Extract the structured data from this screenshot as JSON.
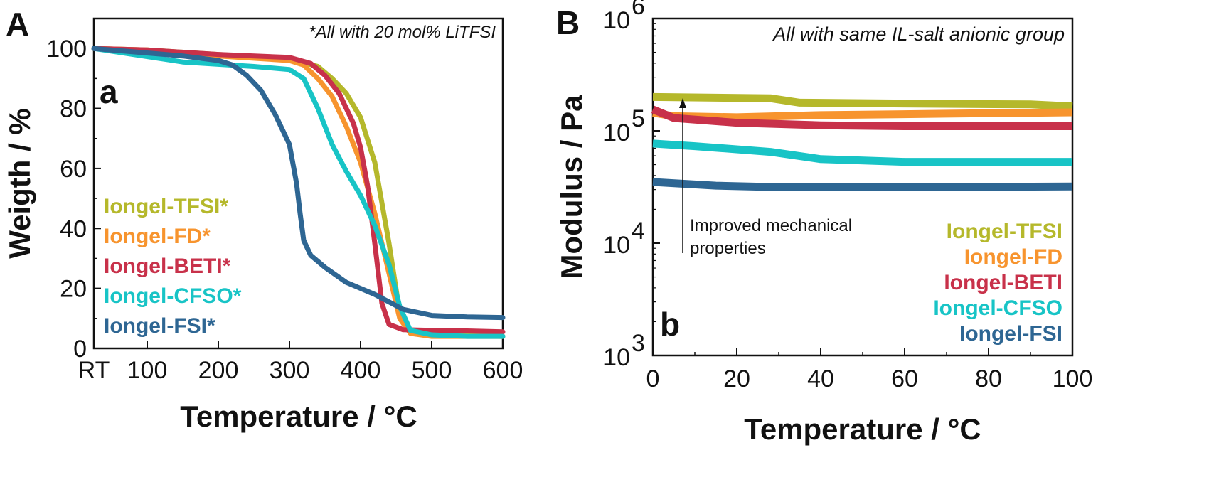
{
  "figure": {
    "panel_left_label": "A",
    "panel_right_label": "B"
  },
  "chart_data": [
    {
      "type": "line",
      "panel_letter": "a",
      "xlabel": "Temperature / °C",
      "ylabel": "Weigth / %",
      "annotation": "*All with 20 mol% LiTFSI",
      "xlim": [
        25,
        600
      ],
      "ylim": [
        0,
        110
      ],
      "x_ticks": [
        {
          "value": 25,
          "label": "RT"
        },
        {
          "value": 100,
          "label": "100"
        },
        {
          "value": 200,
          "label": "200"
        },
        {
          "value": 300,
          "label": "300"
        },
        {
          "value": 400,
          "label": "400"
        },
        {
          "value": 500,
          "label": "500"
        },
        {
          "value": 600,
          "label": "600"
        }
      ],
      "y_ticks": [
        0,
        20,
        40,
        60,
        80,
        100
      ],
      "legend_position": "left-middle",
      "series": [
        {
          "name": "Iongel-TFSI*",
          "color": "#b5b82b",
          "points": [
            [
              25,
              100
            ],
            [
              100,
              99.5
            ],
            [
              200,
              98
            ],
            [
              300,
              96.5
            ],
            [
              340,
              94
            ],
            [
              360,
              90
            ],
            [
              380,
              85
            ],
            [
              400,
              77
            ],
            [
              420,
              62
            ],
            [
              440,
              35
            ],
            [
              455,
              12
            ],
            [
              470,
              6
            ],
            [
              500,
              4.5
            ],
            [
              550,
              4.2
            ],
            [
              600,
              4
            ]
          ]
        },
        {
          "name": "Iongel-FD*",
          "color": "#f7942e",
          "points": [
            [
              25,
              100
            ],
            [
              100,
              99.5
            ],
            [
              200,
              97.5
            ],
            [
              300,
              96
            ],
            [
              320,
              94.5
            ],
            [
              340,
              90
            ],
            [
              360,
              84
            ],
            [
              380,
              74
            ],
            [
              400,
              62
            ],
            [
              420,
              45
            ],
            [
              440,
              25
            ],
            [
              455,
              10
            ],
            [
              470,
              5
            ],
            [
              500,
              4
            ],
            [
              550,
              4
            ],
            [
              600,
              4
            ]
          ]
        },
        {
          "name": "Iongel-BETI*",
          "color": "#c8314a",
          "points": [
            [
              25,
              100
            ],
            [
              100,
              99.5
            ],
            [
              200,
              98
            ],
            [
              300,
              97
            ],
            [
              330,
              95
            ],
            [
              350,
              91
            ],
            [
              370,
              85
            ],
            [
              390,
              75
            ],
            [
              400,
              67
            ],
            [
              410,
              54
            ],
            [
              420,
              35
            ],
            [
              430,
              15
            ],
            [
              440,
              8
            ],
            [
              460,
              6.2
            ],
            [
              500,
              6
            ],
            [
              550,
              5.8
            ],
            [
              600,
              5.5
            ]
          ]
        },
        {
          "name": "Iongel-CFSO*",
          "color": "#18c4c6",
          "points": [
            [
              25,
              100
            ],
            [
              80,
              98
            ],
            [
              150,
              95.5
            ],
            [
              250,
              94
            ],
            [
              300,
              93
            ],
            [
              320,
              90
            ],
            [
              340,
              80
            ],
            [
              360,
              68
            ],
            [
              380,
              59
            ],
            [
              400,
              51
            ],
            [
              420,
              41
            ],
            [
              440,
              28
            ],
            [
              455,
              14
            ],
            [
              470,
              6
            ],
            [
              500,
              4.5
            ],
            [
              550,
              4
            ],
            [
              600,
              4
            ]
          ]
        },
        {
          "name": "Iongel-FSI*",
          "color": "#2e6693",
          "points": [
            [
              25,
              100
            ],
            [
              100,
              98.5
            ],
            [
              150,
              97.5
            ],
            [
              200,
              96
            ],
            [
              220,
              94.5
            ],
            [
              240,
              91
            ],
            [
              260,
              86
            ],
            [
              280,
              78
            ],
            [
              300,
              68
            ],
            [
              310,
              55
            ],
            [
              315,
              45
            ],
            [
              320,
              36
            ],
            [
              330,
              31
            ],
            [
              350,
              27
            ],
            [
              380,
              22
            ],
            [
              420,
              18
            ],
            [
              460,
              13
            ],
            [
              500,
              11
            ],
            [
              550,
              10.5
            ],
            [
              600,
              10.3
            ]
          ]
        }
      ]
    },
    {
      "type": "line",
      "panel_letter": "b",
      "xlabel": "Temperature / °C",
      "ylabel": "Modulus / Pa",
      "yscale": "log",
      "annotation": "All with same IL-salt anionic group",
      "xlim": [
        0,
        100
      ],
      "ylim": [
        1000,
        1000000
      ],
      "x_ticks": [
        0,
        20,
        40,
        60,
        80,
        100
      ],
      "y_ticks": [
        {
          "value": 1000,
          "base": "10",
          "exp": "3"
        },
        {
          "value": 10000,
          "base": "10",
          "exp": "4"
        },
        {
          "value": 100000,
          "base": "10",
          "exp": "5"
        },
        {
          "value": 1000000,
          "base": "10",
          "exp": "6"
        }
      ],
      "legend_position": "bottom-right",
      "arrow_text": [
        "Improved mechanical",
        "properties"
      ],
      "series": [
        {
          "name": "Iongel-TFSI",
          "color": "#b5b82b",
          "points": [
            [
              0,
              200000
            ],
            [
              28,
              195000
            ],
            [
              35,
              178000
            ],
            [
              60,
              175000
            ],
            [
              90,
              172000
            ],
            [
              100,
              165000
            ]
          ]
        },
        {
          "name": "Iongel-FD",
          "color": "#f7942e",
          "points": [
            [
              0,
              145000
            ],
            [
              5,
              135000
            ],
            [
              20,
              132000
            ],
            [
              40,
              138000
            ],
            [
              70,
              142000
            ],
            [
              100,
              146000
            ]
          ]
        },
        {
          "name": "Iongel-BETI",
          "color": "#c8314a",
          "points": [
            [
              0,
              155000
            ],
            [
              5,
              130000
            ],
            [
              20,
              118000
            ],
            [
              40,
              112000
            ],
            [
              60,
              110000
            ],
            [
              100,
              110000
            ]
          ]
        },
        {
          "name": "Iongel-CFSO",
          "color": "#18c4c6",
          "points": [
            [
              0,
              77000
            ],
            [
              10,
              73000
            ],
            [
              28,
              65000
            ],
            [
              40,
              56000
            ],
            [
              60,
              53000
            ],
            [
              100,
              53000
            ]
          ]
        },
        {
          "name": "Iongel-FSI",
          "color": "#2e6693",
          "points": [
            [
              0,
              35000
            ],
            [
              15,
              32500
            ],
            [
              30,
              31500
            ],
            [
              60,
              31500
            ],
            [
              100,
              32000
            ]
          ]
        }
      ]
    }
  ]
}
